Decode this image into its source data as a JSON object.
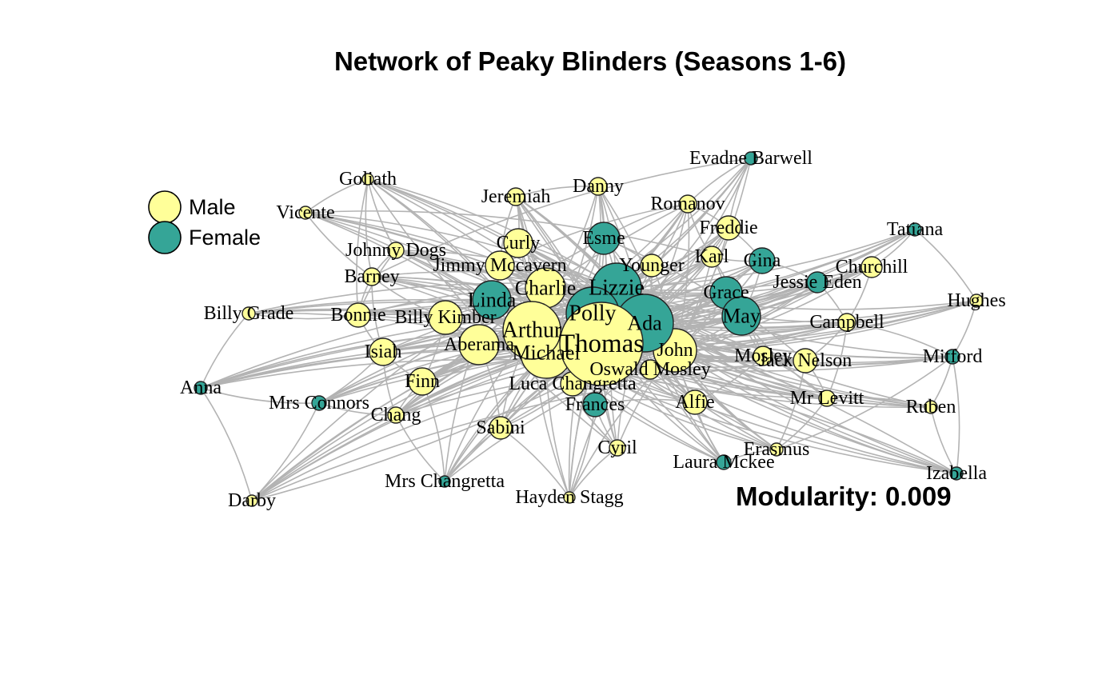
{
  "title": "Network of Peaky Blinders (Seasons 1-6)",
  "modularity_label": "Modularity: 0.009",
  "colors": {
    "male": "#ffff99",
    "female": "#35a597",
    "edge": "#b3b3b3",
    "stroke": "#222222"
  },
  "legend": [
    {
      "label": "Male",
      "gender": "male"
    },
    {
      "label": "Female",
      "gender": "female"
    }
  ],
  "nodes": [
    {
      "name": "Thomas",
      "gender": "male"
    },
    {
      "name": "Arthur",
      "gender": "male"
    },
    {
      "name": "Michael",
      "gender": "male"
    },
    {
      "name": "Polly",
      "gender": "female"
    },
    {
      "name": "Ada",
      "gender": "female"
    },
    {
      "name": "Lizzie",
      "gender": "female"
    },
    {
      "name": "John",
      "gender": "male"
    },
    {
      "name": "Charlie",
      "gender": "male"
    },
    {
      "name": "Linda",
      "gender": "female"
    },
    {
      "name": "Aberama",
      "gender": "male"
    },
    {
      "name": "Billy Kimber",
      "gender": "male"
    },
    {
      "name": "Curly",
      "gender": "male"
    },
    {
      "name": "Jimmy Mccavern",
      "gender": "male"
    },
    {
      "name": "Esme",
      "gender": "female"
    },
    {
      "name": "Younger",
      "gender": "male"
    },
    {
      "name": "Grace",
      "gender": "female"
    },
    {
      "name": "May",
      "gender": "female"
    },
    {
      "name": "Gina",
      "gender": "female"
    },
    {
      "name": "Karl",
      "gender": "male"
    },
    {
      "name": "Freddie",
      "gender": "male"
    },
    {
      "name": "Romanov",
      "gender": "male"
    },
    {
      "name": "Danny",
      "gender": "male"
    },
    {
      "name": "Jeremiah",
      "gender": "male"
    },
    {
      "name": "Goliath",
      "gender": "male"
    },
    {
      "name": "Vicente",
      "gender": "male"
    },
    {
      "name": "Johnny Dogs",
      "gender": "male"
    },
    {
      "name": "Barney",
      "gender": "male"
    },
    {
      "name": "Billy Grade",
      "gender": "male"
    },
    {
      "name": "Bonnie",
      "gender": "male"
    },
    {
      "name": "Isiah",
      "gender": "male"
    },
    {
      "name": "Finn",
      "gender": "male"
    },
    {
      "name": "Anna",
      "gender": "female"
    },
    {
      "name": "Mrs Connors",
      "gender": "female"
    },
    {
      "name": "Chang",
      "gender": "male"
    },
    {
      "name": "Sabini",
      "gender": "male"
    },
    {
      "name": "Luca Changretta",
      "gender": "male"
    },
    {
      "name": "Oswald Mosley",
      "gender": "male"
    },
    {
      "name": "Frances",
      "gender": "female"
    },
    {
      "name": "Cyril",
      "gender": "male"
    },
    {
      "name": "Alfie",
      "gender": "male"
    },
    {
      "name": "Mrs Changretta",
      "gender": "female"
    },
    {
      "name": "Hayden Stagg",
      "gender": "male"
    },
    {
      "name": "Darby",
      "gender": "male"
    },
    {
      "name": "Erasmus",
      "gender": "male"
    },
    {
      "name": "Laura Mckee",
      "gender": "female"
    },
    {
      "name": "Mr Levitt",
      "gender": "male"
    },
    {
      "name": "Ruben",
      "gender": "male"
    },
    {
      "name": "Izabella",
      "gender": "female"
    },
    {
      "name": "Mitford",
      "gender": "female"
    },
    {
      "name": "Jack Nelson",
      "gender": "male"
    },
    {
      "name": "Mosley",
      "gender": "male"
    },
    {
      "name": "Campbell",
      "gender": "male"
    },
    {
      "name": "Hughes",
      "gender": "male"
    },
    {
      "name": "Churchill",
      "gender": "male"
    },
    {
      "name": "Jessie Eden",
      "gender": "female"
    },
    {
      "name": "Tatiana",
      "gender": "female"
    },
    {
      "name": "Evadne Barwell",
      "gender": "female"
    }
  ]
}
